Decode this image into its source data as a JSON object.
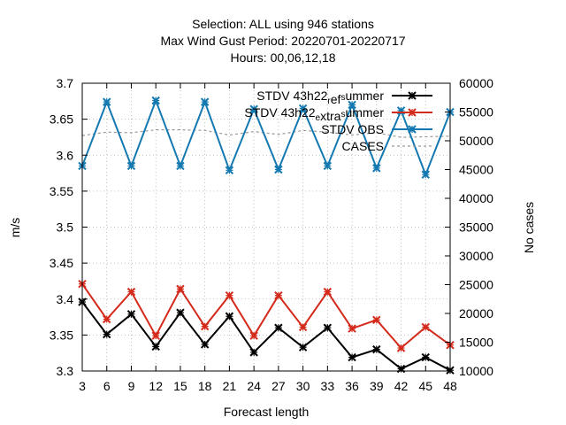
{
  "chart_data": {
    "type": "line",
    "title": [
      "Selection: ALL using   946 stations",
      "Max Wind Gust   Period: 20220701-20220717",
      "Hours:  00,06,12,18"
    ],
    "xlabel": "Forecast length",
    "ylabel": "m/s",
    "y2label": "No cases",
    "x": [
      3,
      6,
      9,
      12,
      15,
      18,
      21,
      24,
      27,
      30,
      33,
      36,
      39,
      42,
      45,
      48
    ],
    "xlim": [
      3,
      48
    ],
    "ylim": [
      3.3,
      3.7
    ],
    "y2lim": [
      10000,
      60000
    ],
    "yticks": [
      "3.3",
      "3.35",
      "3.4",
      "3.45",
      "3.5",
      "3.55",
      "3.6",
      "3.65",
      "3.7"
    ],
    "y2ticks": [
      "10000",
      "15000",
      "20000",
      "25000",
      "30000",
      "35000",
      "40000",
      "45000",
      "50000",
      "55000",
      "60000"
    ],
    "xticks": [
      "3",
      "6",
      "9",
      "12",
      "15",
      "18",
      "21",
      "24",
      "27",
      "30",
      "33",
      "36",
      "39",
      "42",
      "45",
      "48"
    ],
    "grid": true,
    "legend_position": "top-right",
    "series": [
      {
        "name": "STDV 43h22_ref_summer",
        "color": "#000000",
        "axis": "left",
        "marker": "x",
        "values": [
          3.396,
          3.351,
          3.379,
          3.334,
          3.381,
          3.337,
          3.376,
          3.326,
          3.36,
          3.333,
          3.36,
          3.319,
          3.33,
          3.303,
          3.319,
          3.301
        ]
      },
      {
        "name": "STDV 43h22_extra_summer",
        "color": "#d42a1b",
        "axis": "left",
        "marker": "x",
        "values": [
          3.421,
          3.372,
          3.41,
          3.349,
          3.414,
          3.362,
          3.405,
          3.349,
          3.405,
          3.361,
          3.41,
          3.359,
          3.371,
          3.332,
          3.361,
          3.336
        ]
      },
      {
        "name": "STDV OBS",
        "color": "#1479b0",
        "axis": "left",
        "marker": "x",
        "values": [
          3.585,
          3.674,
          3.585,
          3.676,
          3.585,
          3.674,
          3.579,
          3.664,
          3.58,
          3.665,
          3.585,
          3.67,
          3.582,
          3.662,
          3.573,
          3.66
        ]
      },
      {
        "name": "CASES",
        "color": "#999999",
        "axis": "right",
        "dashed": true,
        "values": [
          50900,
          51500,
          51400,
          51900,
          51900,
          51800,
          51000,
          51600,
          51100,
          51800,
          51500,
          51000,
          51400,
          50600,
          50700,
          50800
        ]
      }
    ]
  }
}
